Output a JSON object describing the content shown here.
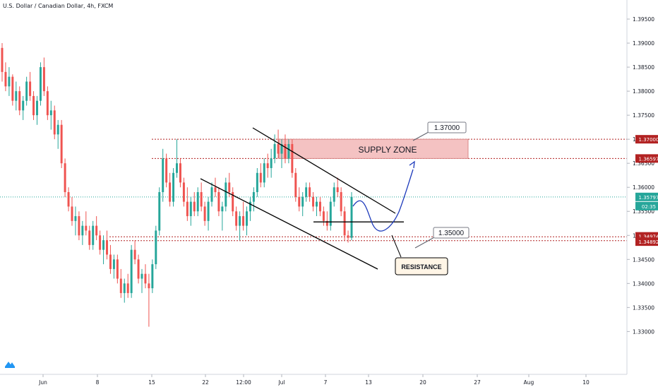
{
  "header": {
    "title": "U.S. Dollar / Canadian Dollar, 4h, FXCM"
  },
  "colors": {
    "up": "#26a69a",
    "down": "#ef5350",
    "level": "#b22222",
    "zone_fill": "#f4c2c2",
    "projection": "#1c39bb",
    "current": "#26a69a"
  },
  "chart_data": {
    "type": "candlestick",
    "ylim": [
      1.3255,
      1.3975
    ],
    "y_ticks": [
      "1.33000",
      "1.33500",
      "1.34000",
      "1.34500",
      "1.35000",
      "1.35500",
      "1.36000",
      "1.36500",
      "1.37000",
      "1.37500",
      "1.38000",
      "1.38500",
      "1.39000",
      "1.39500"
    ],
    "x_ticks": [
      "Jun",
      "8",
      "15",
      "22",
      "12:00",
      "Jul",
      "7",
      "13",
      "20",
      "27",
      "Aug",
      "10"
    ],
    "price_badges": {
      "high_level": "1.37000",
      "zone_bottom": "1.36597",
      "current": "1.35797",
      "countdown": "02:35",
      "support_top": "1.34974",
      "support_bottom": "1.34892"
    },
    "callouts": [
      "1.37000",
      "1.35000"
    ],
    "zones": [
      {
        "label": "SUPPLY ZONE",
        "from": 1.366,
        "to": 1.37
      }
    ],
    "labels": {
      "resistance": "RESISTANCE"
    },
    "levels": [
      1.37,
      1.366,
      1.3497,
      1.3489,
      1.358
    ],
    "candles": [
      [
        1.389,
        1.39,
        1.382,
        1.384
      ],
      [
        1.384,
        1.386,
        1.38,
        1.381
      ],
      [
        1.381,
        1.385,
        1.379,
        1.383
      ],
      [
        1.383,
        1.3835,
        1.377,
        1.378
      ],
      [
        1.378,
        1.382,
        1.376,
        1.38
      ],
      [
        1.38,
        1.381,
        1.375,
        1.376
      ],
      [
        1.376,
        1.379,
        1.374,
        1.378
      ],
      [
        1.378,
        1.383,
        1.377,
        1.382
      ],
      [
        1.382,
        1.384,
        1.378,
        1.379
      ],
      [
        1.379,
        1.38,
        1.374,
        1.375
      ],
      [
        1.375,
        1.379,
        1.373,
        1.378
      ],
      [
        1.378,
        1.386,
        1.377,
        1.385
      ],
      [
        1.385,
        1.387,
        1.379,
        1.38
      ],
      [
        1.38,
        1.381,
        1.374,
        1.375
      ],
      [
        1.375,
        1.378,
        1.372,
        1.376
      ],
      [
        1.376,
        1.377,
        1.37,
        1.371
      ],
      [
        1.371,
        1.374,
        1.368,
        1.373
      ],
      [
        1.373,
        1.374,
        1.364,
        1.365
      ],
      [
        1.365,
        1.366,
        1.358,
        1.359
      ],
      [
        1.359,
        1.36,
        1.355,
        1.356
      ],
      [
        1.356,
        1.358,
        1.352,
        1.353
      ],
      [
        1.353,
        1.356,
        1.35,
        1.354
      ],
      [
        1.354,
        1.355,
        1.349,
        1.35
      ],
      [
        1.35,
        1.353,
        1.348,
        1.352
      ],
      [
        1.352,
        1.355,
        1.35,
        1.351
      ],
      [
        1.351,
        1.352,
        1.347,
        1.348
      ],
      [
        1.348,
        1.353,
        1.347,
        1.352
      ],
      [
        1.352,
        1.354,
        1.349,
        1.35
      ],
      [
        1.35,
        1.351,
        1.346,
        1.347
      ],
      [
        1.347,
        1.35,
        1.344,
        1.349
      ],
      [
        1.349,
        1.351,
        1.345,
        1.346
      ],
      [
        1.346,
        1.348,
        1.342,
        1.343
      ],
      [
        1.343,
        1.346,
        1.341,
        1.345
      ],
      [
        1.345,
        1.346,
        1.34,
        1.341
      ],
      [
        1.341,
        1.343,
        1.337,
        1.338
      ],
      [
        1.338,
        1.341,
        1.336,
        1.34
      ],
      [
        1.34,
        1.342,
        1.337,
        1.338
      ],
      [
        1.338,
        1.348,
        1.337,
        1.347
      ],
      [
        1.347,
        1.349,
        1.344,
        1.345
      ],
      [
        1.345,
        1.346,
        1.34,
        1.341
      ],
      [
        1.341,
        1.343,
        1.338,
        1.342
      ],
      [
        1.342,
        1.344,
        1.339,
        1.34
      ],
      [
        1.34,
        1.342,
        1.331,
        1.339
      ],
      [
        1.339,
        1.345,
        1.338,
        1.344
      ],
      [
        1.344,
        1.352,
        1.343,
        1.351
      ],
      [
        1.351,
        1.36,
        1.35,
        1.359
      ],
      [
        1.359,
        1.368,
        1.357,
        1.366
      ],
      [
        1.366,
        1.367,
        1.36,
        1.361
      ],
      [
        1.361,
        1.363,
        1.356,
        1.357
      ],
      [
        1.357,
        1.364,
        1.356,
        1.363
      ],
      [
        1.363,
        1.37,
        1.362,
        1.365
      ],
      [
        1.365,
        1.366,
        1.36,
        1.361
      ],
      [
        1.361,
        1.362,
        1.356,
        1.357
      ],
      [
        1.357,
        1.36,
        1.353,
        1.354
      ],
      [
        1.354,
        1.358,
        1.352,
        1.357
      ],
      [
        1.357,
        1.359,
        1.354,
        1.355
      ],
      [
        1.355,
        1.36,
        1.354,
        1.359
      ],
      [
        1.359,
        1.361,
        1.355,
        1.356
      ],
      [
        1.356,
        1.357,
        1.352,
        1.353
      ],
      [
        1.353,
        1.358,
        1.351,
        1.357
      ],
      [
        1.357,
        1.361,
        1.356,
        1.36
      ],
      [
        1.36,
        1.362,
        1.358,
        1.359
      ],
      [
        1.359,
        1.36,
        1.354,
        1.355
      ],
      [
        1.355,
        1.357,
        1.351,
        1.356
      ],
      [
        1.356,
        1.362,
        1.355,
        1.361
      ],
      [
        1.361,
        1.363,
        1.358,
        1.359
      ],
      [
        1.359,
        1.36,
        1.354,
        1.355
      ],
      [
        1.355,
        1.356,
        1.351,
        1.352
      ],
      [
        1.352,
        1.355,
        1.349,
        1.354
      ],
      [
        1.354,
        1.357,
        1.351,
        1.352
      ],
      [
        1.352,
        1.356,
        1.35,
        1.355
      ],
      [
        1.355,
        1.358,
        1.353,
        1.357
      ],
      [
        1.357,
        1.36,
        1.355,
        1.359
      ],
      [
        1.359,
        1.364,
        1.358,
        1.363
      ],
      [
        1.363,
        1.365,
        1.36,
        1.361
      ],
      [
        1.361,
        1.366,
        1.36,
        1.365
      ],
      [
        1.365,
        1.367,
        1.362,
        1.364
      ],
      [
        1.364,
        1.368,
        1.362,
        1.366
      ],
      [
        1.366,
        1.371,
        1.365,
        1.369
      ],
      [
        1.369,
        1.372,
        1.366,
        1.367
      ],
      [
        1.367,
        1.37,
        1.364,
        1.369
      ],
      [
        1.369,
        1.371,
        1.365,
        1.366
      ],
      [
        1.366,
        1.37,
        1.365,
        1.369
      ],
      [
        1.369,
        1.37,
        1.362,
        1.363
      ],
      [
        1.363,
        1.364,
        1.357,
        1.358
      ],
      [
        1.358,
        1.36,
        1.355,
        1.356
      ],
      [
        1.356,
        1.359,
        1.354,
        1.358
      ],
      [
        1.358,
        1.361,
        1.357,
        1.36
      ],
      [
        1.36,
        1.361,
        1.357,
        1.358
      ],
      [
        1.358,
        1.359,
        1.355,
        1.356
      ],
      [
        1.356,
        1.358,
        1.354,
        1.357
      ],
      [
        1.357,
        1.358,
        1.354,
        1.355
      ],
      [
        1.355,
        1.356,
        1.352,
        1.353
      ],
      [
        1.353,
        1.355,
        1.351,
        1.352
      ],
      [
        1.352,
        1.358,
        1.351,
        1.357
      ],
      [
        1.357,
        1.361,
        1.356,
        1.36
      ],
      [
        1.36,
        1.362,
        1.358,
        1.359
      ],
      [
        1.359,
        1.36,
        1.354,
        1.355
      ],
      [
        1.355,
        1.356,
        1.349,
        1.35
      ],
      [
        1.35,
        1.351,
        1.3485,
        1.3495
      ],
      [
        1.3495,
        1.359,
        1.349,
        1.358
      ]
    ]
  }
}
